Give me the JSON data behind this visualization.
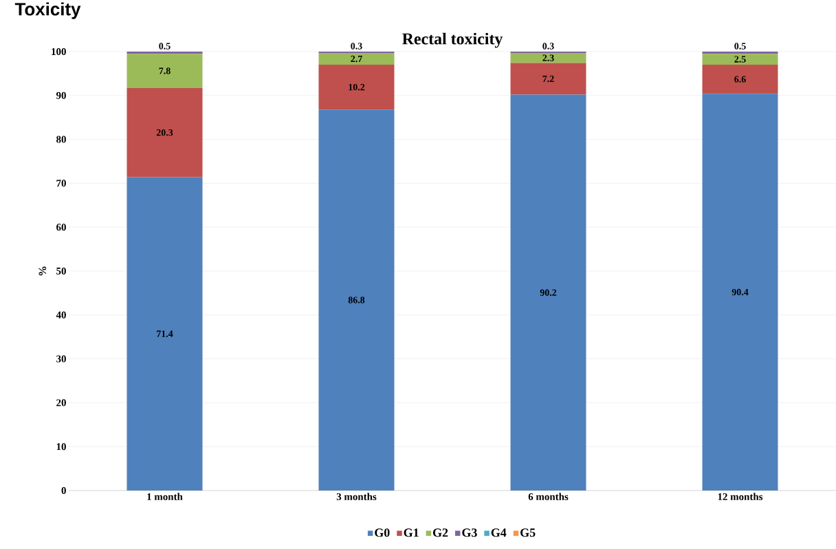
{
  "chart_data": {
    "type": "bar",
    "title": "Rectal toxicity",
    "ylabel": "%",
    "annotations": [
      "Toxicity"
    ],
    "categories": [
      "1 month",
      "3 months",
      "6  months",
      "12 months"
    ],
    "stacked": true,
    "ylim": [
      0,
      100
    ],
    "yticks": [
      0,
      10,
      20,
      30,
      40,
      50,
      60,
      70,
      80,
      90,
      100
    ],
    "grid": "y",
    "legend": "bottom",
    "series": [
      {
        "name": "G0",
        "color": "#4f81bd",
        "values": [
          71.4,
          86.8,
          90.2,
          90.4
        ],
        "value_labels": [
          "71.4",
          "86.8",
          "90.2",
          "90.4"
        ]
      },
      {
        "name": "G1",
        "color": "#c0504d",
        "values": [
          20.3,
          10.2,
          7.2,
          6.6
        ],
        "value_labels": [
          "20.3",
          "10.2",
          "7.2",
          "6.6"
        ]
      },
      {
        "name": "G2",
        "color": "#9bbb59",
        "values": [
          7.8,
          2.7,
          2.3,
          2.5
        ],
        "value_labels": [
          "7.8",
          "2.7",
          "2.3",
          "2.5"
        ]
      },
      {
        "name": "G3",
        "color": "#8064a2",
        "values": [
          0.5,
          0.3,
          0.3,
          0.5
        ],
        "value_labels": [
          "0.5",
          "0.3",
          "0.3",
          "0.5"
        ]
      },
      {
        "name": "G4",
        "color": "#4bacc6",
        "values": [
          0,
          0,
          0,
          0
        ],
        "value_labels": [
          null,
          null,
          null,
          null
        ]
      },
      {
        "name": "G5",
        "color": "#f79646",
        "values": [
          0,
          0,
          0,
          0
        ],
        "value_labels": [
          null,
          null,
          null,
          null
        ]
      }
    ]
  }
}
